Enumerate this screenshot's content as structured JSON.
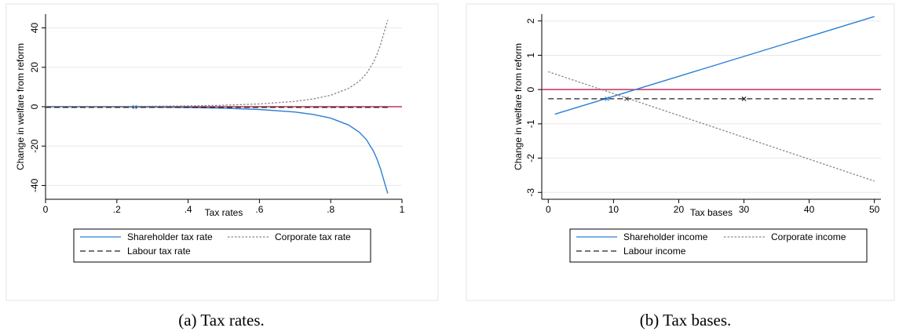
{
  "chart_data": [
    {
      "type": "line",
      "xlabel": "Tax rates",
      "ylabel": "Change in welfare from reform",
      "xlim": [
        0,
        1
      ],
      "ylim": [
        -47,
        47
      ],
      "xticks": [
        0,
        0.2,
        0.4,
        0.6,
        0.8,
        1
      ],
      "xtick_labels": [
        "0",
        ".2",
        ".4",
        ".6",
        ".8",
        "1"
      ],
      "yticks": [
        -40,
        -20,
        0,
        20,
        40
      ],
      "ytick_labels": [
        "-40",
        "-20",
        "0",
        "20",
        "40"
      ],
      "grid": true,
      "legend_position": "bottom",
      "reference_line": {
        "y": 0,
        "color": "#c8305a"
      },
      "series": [
        {
          "name": "Shareholder tax rate",
          "style": "solid",
          "color": "#2c7fd6",
          "x": [
            0.0,
            0.1,
            0.2,
            0.25,
            0.3,
            0.4,
            0.5,
            0.6,
            0.7,
            0.75,
            0.8,
            0.85,
            0.88,
            0.9,
            0.92,
            0.93,
            0.94,
            0.95,
            0.96
          ],
          "y": [
            0.0,
            -0.05,
            -0.12,
            -0.17,
            -0.22,
            -0.4,
            -0.75,
            -1.4,
            -2.7,
            -3.9,
            -5.8,
            -9.3,
            -12.9,
            -16.7,
            -22.6,
            -26.6,
            -31.7,
            -37.9,
            -44.0
          ]
        },
        {
          "name": "Corporate tax rate",
          "style": "dotted",
          "color": "#888888",
          "x": [
            0.0,
            0.1,
            0.2,
            0.25,
            0.3,
            0.4,
            0.5,
            0.6,
            0.7,
            0.75,
            0.8,
            0.85,
            0.88,
            0.9,
            0.92,
            0.93,
            0.94,
            0.95,
            0.96
          ],
          "y": [
            0.0,
            0.05,
            0.12,
            0.17,
            0.22,
            0.4,
            0.75,
            1.4,
            2.7,
            3.9,
            5.8,
            9.3,
            12.9,
            16.7,
            22.6,
            26.6,
            31.7,
            37.9,
            44.0
          ]
        },
        {
          "name": "Labour tax rate",
          "style": "dashed",
          "color": "#222222",
          "x": [
            0.0,
            0.96
          ],
          "y": [
            -0.3,
            -0.3
          ]
        }
      ],
      "markers": [
        {
          "x": 0.25,
          "y": -0.2,
          "color": "#5a8ab8"
        }
      ],
      "caption": "(a) Tax rates."
    },
    {
      "type": "line",
      "xlabel": "Tax bases",
      "ylabel": "Change in welfare from reform",
      "xlim": [
        -1,
        51
      ],
      "ylim": [
        -3.2,
        2.2
      ],
      "xticks": [
        0,
        10,
        20,
        30,
        40,
        50
      ],
      "xtick_labels": [
        "0",
        "10",
        "20",
        "30",
        "40",
        "50"
      ],
      "yticks": [
        -3,
        -2,
        -1,
        0,
        1,
        2
      ],
      "ytick_labels": [
        "-3",
        "-2",
        "-1",
        "0",
        "1",
        "2"
      ],
      "grid": true,
      "legend_position": "bottom",
      "reference_line": {
        "y": 0,
        "color": "#c8305a"
      },
      "series": [
        {
          "name": "Shareholder income",
          "style": "solid",
          "color": "#2c7fd6",
          "x": [
            1,
            50
          ],
          "y": [
            -0.72,
            2.13
          ]
        },
        {
          "name": "Corporate income",
          "style": "dotted",
          "color": "#888888",
          "x": [
            0,
            50
          ],
          "y": [
            0.52,
            -2.67
          ]
        },
        {
          "name": "Labour income",
          "style": "dashed",
          "color": "#222222",
          "x": [
            0,
            50
          ],
          "y": [
            -0.27,
            -0.27
          ]
        }
      ],
      "markers": [
        {
          "x": 9,
          "y": -0.27,
          "color": "#2c7fd6"
        },
        {
          "x": 12,
          "y": -0.27,
          "color": "#555555"
        },
        {
          "x": 30,
          "y": -0.27,
          "color": "#222222"
        }
      ],
      "caption": "(b) Tax bases."
    }
  ]
}
